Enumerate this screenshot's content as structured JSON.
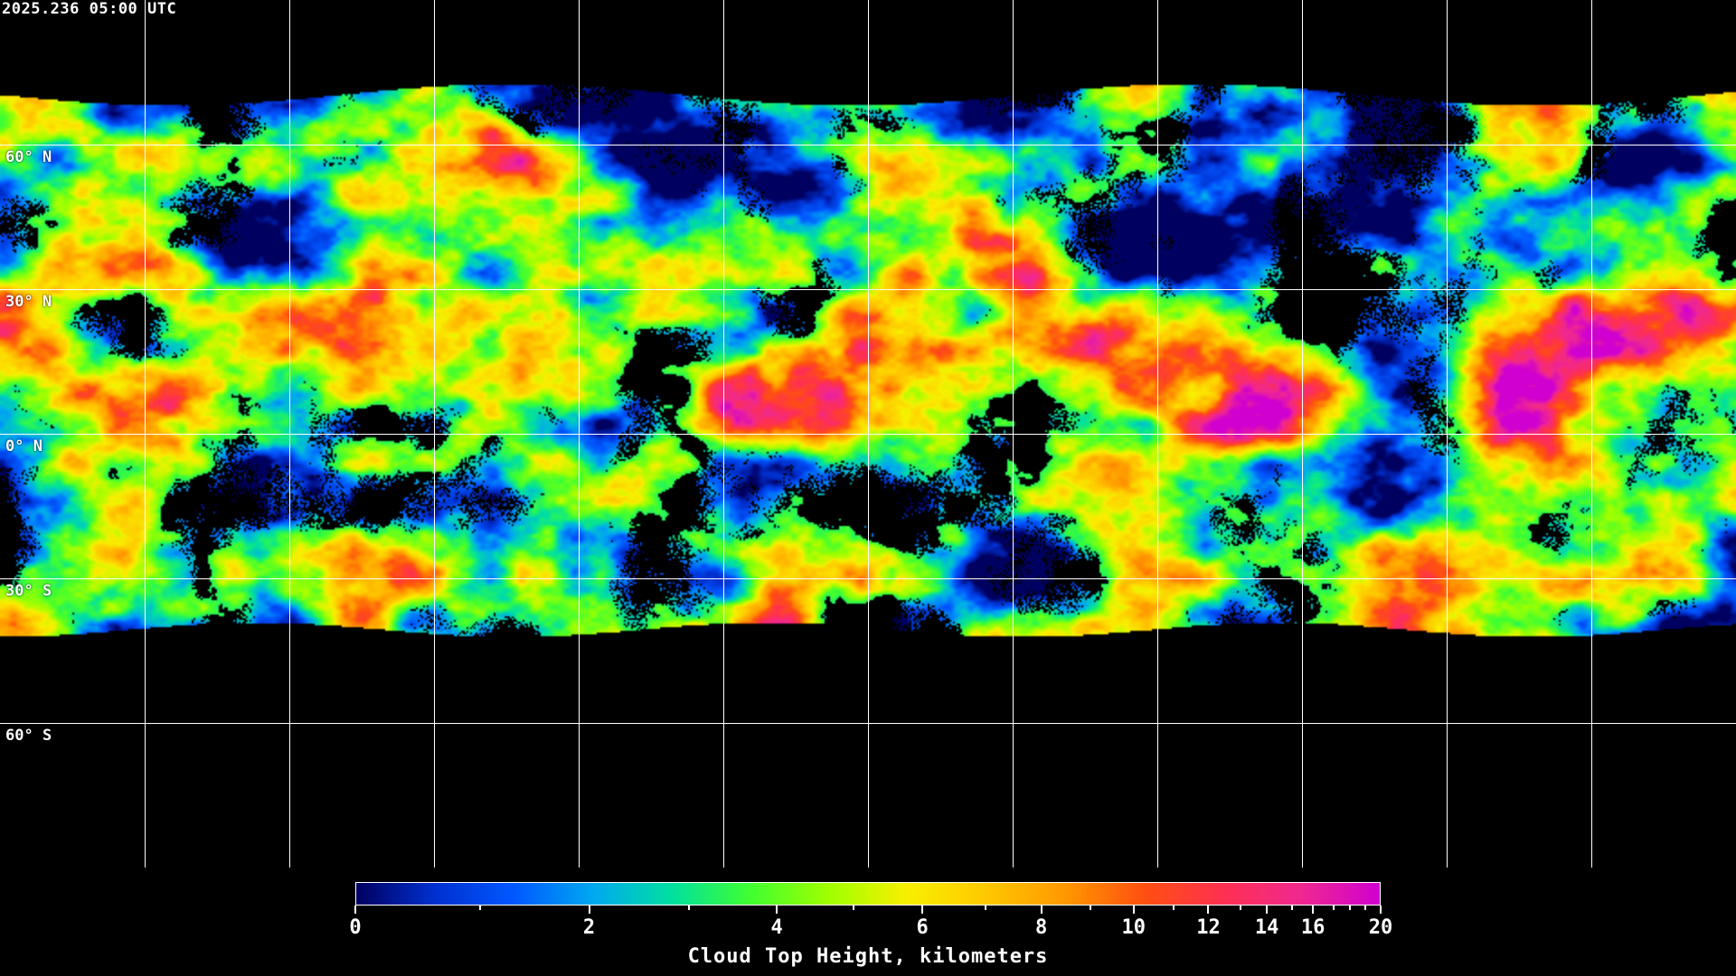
{
  "timestamp": "2025.236 05:00 UTC",
  "map": {
    "projection": "equirectangular",
    "grid_spacing_degrees": 30,
    "latitude_labels": [
      "60° N",
      "30° N",
      "0° N",
      "30° S",
      "60° S"
    ],
    "coastline_color": "#ffffff",
    "grid_color": "#ffffff",
    "no_data_color": "#000000"
  },
  "colorbar": {
    "title": "Cloud Top Height, kilometers",
    "min": 0,
    "max": 20,
    "tick_labels": [
      "0",
      "2",
      "4",
      "6",
      "8",
      "10",
      "12",
      "14",
      "16",
      "20"
    ],
    "minor_ticks": [
      1,
      3,
      5,
      7,
      9,
      11,
      13,
      15,
      17,
      18,
      19
    ],
    "colors": [
      "#000060",
      "#0030d0",
      "#0058ff",
      "#00a8f0",
      "#00e0a0",
      "#40ff30",
      "#a0ff00",
      "#f8f000",
      "#ffc800",
      "#ff9800",
      "#ff5010",
      "#ff3050",
      "#f02890",
      "#d000d0"
    ]
  }
}
